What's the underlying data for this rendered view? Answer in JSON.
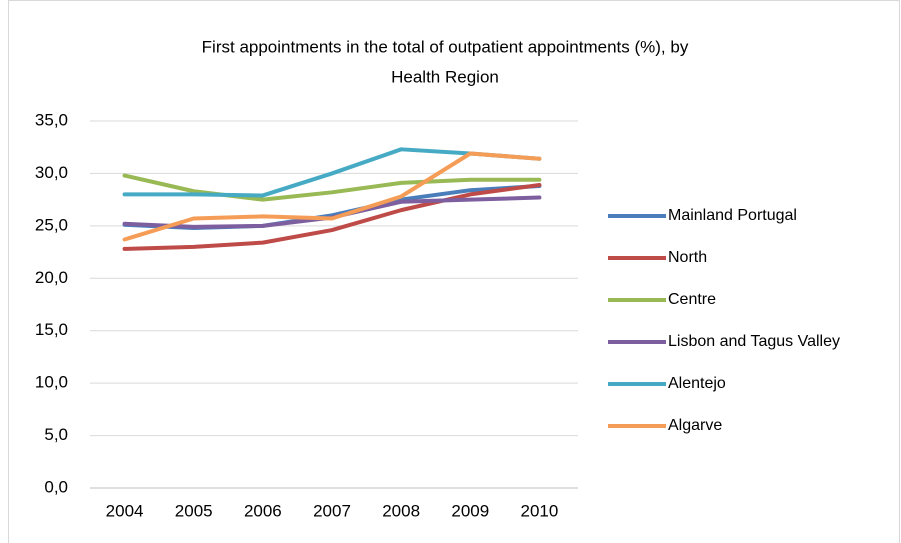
{
  "chart_data": {
    "type": "line",
    "title": [
      "First appointments in the total of outpatient appointments (%), by",
      "Health Region"
    ],
    "categories": [
      "2004",
      "2005",
      "2006",
      "2007",
      "2008",
      "2009",
      "2010"
    ],
    "series": [
      {
        "name": "Mainland Portugal",
        "color": "#4a7ebb",
        "values": [
          25.1,
          24.8,
          25.0,
          26.0,
          27.5,
          28.4,
          28.8
        ]
      },
      {
        "name": "North",
        "color": "#be4b48",
        "values": [
          22.8,
          23.0,
          23.4,
          24.6,
          26.5,
          28.0,
          28.9
        ]
      },
      {
        "name": "Centre",
        "color": "#98b954",
        "values": [
          29.8,
          28.3,
          27.5,
          28.2,
          29.1,
          29.4,
          29.4
        ]
      },
      {
        "name": "Lisbon and Tagus Valley",
        "color": "#7d5fa0",
        "values": [
          25.2,
          24.9,
          25.0,
          25.8,
          27.3,
          27.5,
          27.7
        ]
      },
      {
        "name": "Alentejo",
        "color": "#46aac5",
        "values": [
          28.0,
          28.0,
          27.9,
          30.0,
          32.3,
          31.9,
          31.4
        ]
      },
      {
        "name": "Algarve",
        "color": "#f59d56",
        "values": [
          23.7,
          25.7,
          25.9,
          25.7,
          27.8,
          31.9,
          31.4
        ]
      }
    ],
    "ylim": [
      0,
      35
    ],
    "yticks": [
      {
        "value": 0,
        "label": "0,0"
      },
      {
        "value": 5,
        "label": "5,0"
      },
      {
        "value": 10,
        "label": "10,0"
      },
      {
        "value": 15,
        "label": "15,0"
      },
      {
        "value": 20,
        "label": "20,0"
      },
      {
        "value": 25,
        "label": "25,0"
      },
      {
        "value": 30,
        "label": "30,0"
      },
      {
        "value": 35,
        "label": "35,0"
      }
    ],
    "grid": true,
    "legend": "right"
  }
}
